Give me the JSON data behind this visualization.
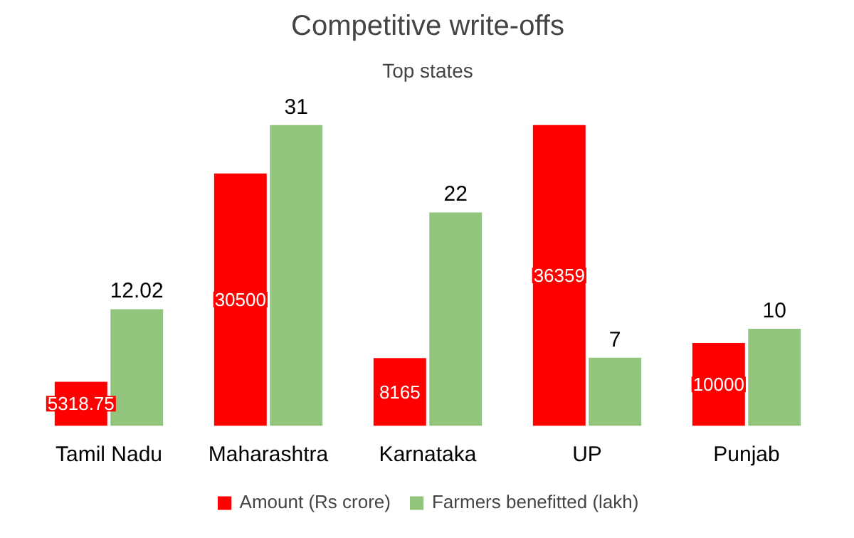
{
  "chart_data": {
    "type": "bar",
    "title": "Competitive write-offs",
    "subtitle": "Top states",
    "categories": [
      "Tamil Nadu",
      "Maharashtra",
      "Karnataka",
      "UP",
      "Punjab"
    ],
    "series": [
      {
        "name": "Amount (Rs crore)",
        "color": "#ff0000",
        "values": [
          5318.75,
          30500,
          8165,
          36359,
          10000
        ]
      },
      {
        "name": "Farmers benefitted (lakh)",
        "color": "#93c47d",
        "values": [
          12.02,
          31,
          22,
          7,
          10
        ],
        "axis": "y2"
      }
    ],
    "data_labels": true,
    "legend": "bottom",
    "grid": false
  }
}
